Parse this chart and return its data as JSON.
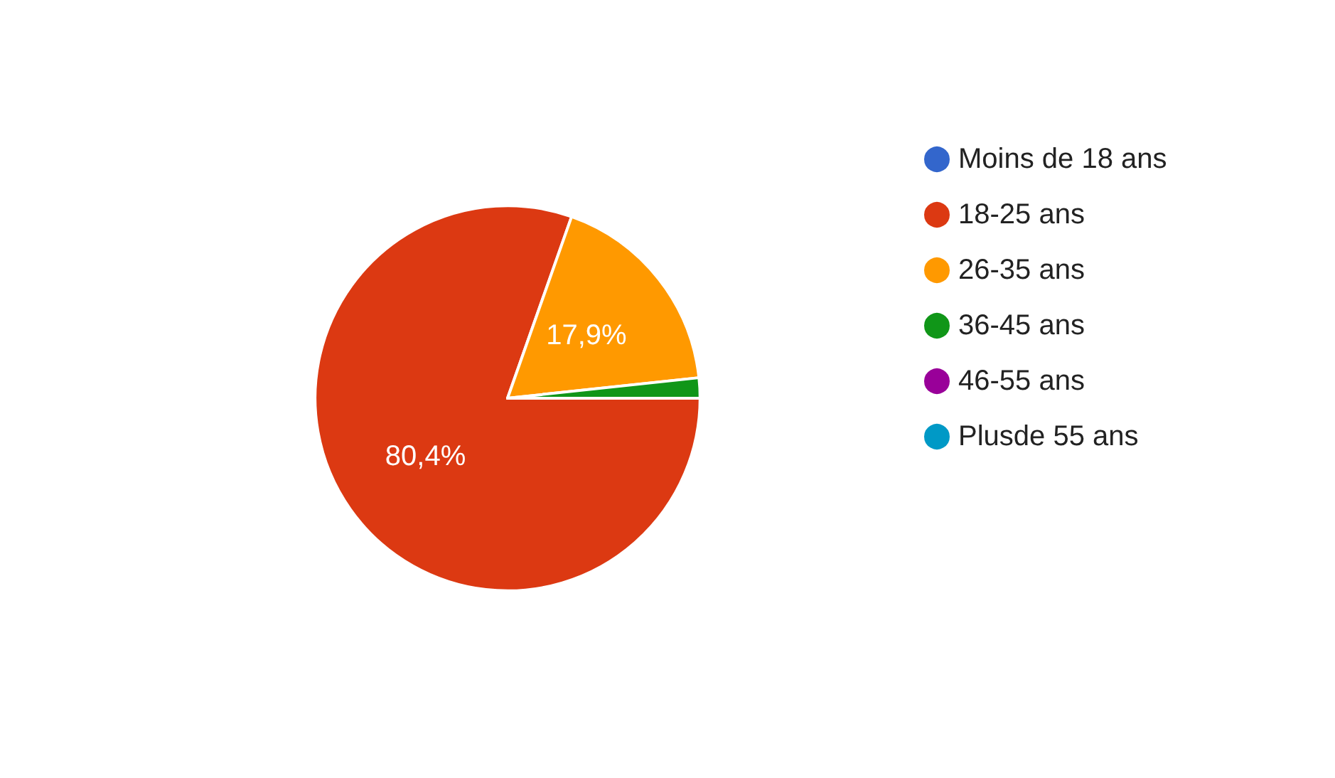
{
  "chart_data": {
    "type": "pie",
    "categories": [
      "Moins de 18 ans",
      "18-25 ans",
      "26-35 ans",
      "36-45 ans",
      "46-55 ans",
      "Plusde 55 ans"
    ],
    "values": [
      0,
      80.4,
      17.9,
      1.7,
      0,
      0
    ],
    "colors": [
      "#3366cc",
      "#dc3912",
      "#ff9900",
      "#109618",
      "#990099",
      "#0099c6"
    ],
    "value_labels": [
      null,
      "80,4%",
      "17,9%",
      null,
      null,
      null
    ],
    "legend": "right"
  }
}
